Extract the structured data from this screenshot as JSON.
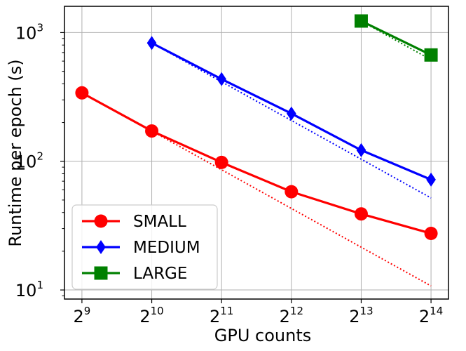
{
  "chart_data": {
    "type": "line",
    "title": "",
    "xlabel": "GPU counts",
    "ylabel": "Runtime per epoch (s)",
    "xscale": "log2",
    "yscale": "log10",
    "xlim_exp": [
      8.75,
      14.25
    ],
    "ylim": [
      8.5,
      1600
    ],
    "grid": true,
    "legend_position": "bottom-left",
    "x_ticks": [
      {
        "base": "2",
        "exp": "9"
      },
      {
        "base": "2",
        "exp": "10"
      },
      {
        "base": "2",
        "exp": "11"
      },
      {
        "base": "2",
        "exp": "12"
      },
      {
        "base": "2",
        "exp": "13"
      },
      {
        "base": "2",
        "exp": "14"
      }
    ],
    "y_ticks": [
      {
        "base": "10",
        "exp": "1"
      },
      {
        "base": "10",
        "exp": "2"
      },
      {
        "base": "10",
        "exp": "3"
      }
    ],
    "series": [
      {
        "name": "SMALL",
        "color": "#ff0000",
        "marker": "circle",
        "x": [
          512,
          1024,
          2048,
          4096,
          8192,
          16384
        ],
        "values": [
          340,
          172,
          98,
          58,
          39,
          27.5
        ],
        "ideal": {
          "x": [
            1024,
            16384
          ],
          "values": [
            172,
            10.75
          ]
        }
      },
      {
        "name": "MEDIUM",
        "color": "#0000ff",
        "marker": "diamond",
        "x": [
          1024,
          2048,
          4096,
          8192,
          16384
        ],
        "values": [
          830,
          435,
          235,
          122,
          72
        ],
        "ideal": {
          "x": [
            1024,
            16384
          ],
          "values": [
            830,
            51.9
          ]
        }
      },
      {
        "name": "LARGE",
        "color": "#008000",
        "marker": "square",
        "x": [
          8192,
          16384
        ],
        "values": [
          1230,
          670
        ],
        "ideal": {
          "x": [
            8192,
            16384
          ],
          "values": [
            1230,
            615
          ]
        }
      }
    ]
  }
}
